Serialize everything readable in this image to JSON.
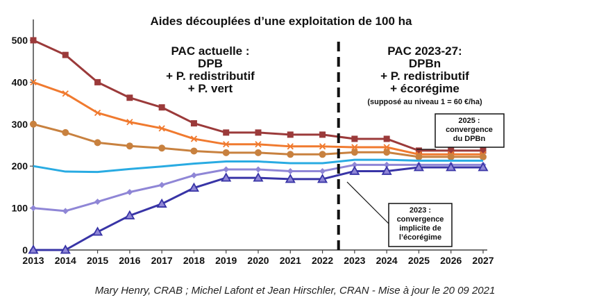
{
  "chart_data": {
    "type": "line",
    "title": "Aides découplées d’une exploitation de 100 ha",
    "x": [
      "2013",
      "2014",
      "2015",
      "2016",
      "2017",
      "2018",
      "2019",
      "2020",
      "2021",
      "2022",
      "2023",
      "2024",
      "2025",
      "2026",
      "2027"
    ],
    "yticks": [
      "0",
      "100",
      "200",
      "300",
      "400",
      "500"
    ],
    "ylim": [
      0,
      500
    ],
    "grid": false,
    "series": [
      {
        "color": "#9b3a3a",
        "marker": "square",
        "values": [
          500,
          465,
          400,
          363,
          340,
          302,
          280,
          280,
          275,
          275,
          265,
          265,
          237,
          237,
          237
        ]
      },
      {
        "color": "#f07a2f",
        "marker": "x",
        "values": [
          400,
          373,
          327,
          305,
          290,
          265,
          252,
          252,
          247,
          247,
          245,
          245,
          228,
          228,
          228
        ]
      },
      {
        "color": "#c8813f",
        "marker": "circle",
        "values": [
          300,
          280,
          256,
          248,
          243,
          236,
          232,
          232,
          228,
          228,
          233,
          233,
          222,
          222,
          222
        ]
      },
      {
        "color": "#29abe2",
        "marker": "none",
        "values": [
          200,
          187,
          186,
          193,
          199,
          206,
          211,
          211,
          207,
          207,
          215,
          215,
          213,
          213,
          213
        ]
      },
      {
        "color": "#8f86d6",
        "marker": "diamond",
        "values": [
          100,
          93,
          115,
          138,
          155,
          178,
          192,
          192,
          188,
          188,
          203,
          203,
          203,
          203,
          203
        ]
      },
      {
        "color": "#3834a6",
        "marker": "triangle",
        "values": [
          0,
          0,
          43,
          82,
          110,
          148,
          172,
          172,
          169,
          169,
          188,
          188,
          197,
          197,
          197
        ]
      }
    ],
    "divider_between": [
      "2022",
      "2023"
    ],
    "annotations": {
      "left_lines": [
        "PAC actuelle :",
        "DPB",
        "+ P. redistributif",
        "+ P. vert"
      ],
      "right_lines": [
        "PAC 2023-27:",
        "DPBn",
        "+ P. redistributif",
        "+ écorégime"
      ],
      "right_note": "(supposé au niveau 1 = 60 €/ha)",
      "box_2025": [
        "2025 :",
        "convergence",
        "du DPBn"
      ],
      "box_2023": [
        "2023 :",
        "convergence",
        "implicite de",
        "l’écorégime"
      ]
    }
  },
  "credit": "Mary Henry, CRAB ;  Michel Lafont et Jean Hirschler, CRAN - Mise à jour le 20 09 2021"
}
